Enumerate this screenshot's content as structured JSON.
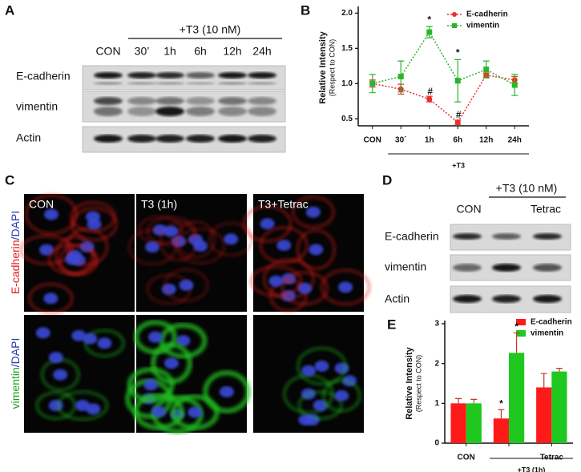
{
  "panel_a": {
    "label": "A",
    "header": "+T3 (10 nM)",
    "lanes": [
      "CON",
      "30’",
      "1h",
      "6h",
      "12h",
      "24h"
    ],
    "rows": [
      "E-cadherin",
      "vimentin",
      "Actin"
    ]
  },
  "panel_c": {
    "label": "C",
    "columns": [
      "CON",
      "T3 (1h)",
      "T3+Tetrac"
    ],
    "row_1": [
      "E-cadherin",
      "/DAPI"
    ],
    "row_2": [
      "vimentin",
      "/DAPI"
    ]
  },
  "panel_d": {
    "label": "D",
    "header": "+T3 (10 nM)",
    "lanes": [
      "CON",
      "Tetrac"
    ],
    "rows": [
      "E-cadherin",
      "vimentin",
      "Actin"
    ]
  },
  "chart_data": [
    {
      "type": "line",
      "label": "B",
      "ylabel": "Relative Intensity",
      "ylabel_sub": "(Respect to CON)",
      "categories": [
        "CON",
        "30´",
        "1h",
        "6h",
        "12h",
        "24h"
      ],
      "group_label": "+T3",
      "series": [
        {
          "name": "E-cadherin",
          "color": "#e8312a",
          "marker": "circle",
          "values": [
            1.0,
            0.92,
            0.78,
            0.45,
            1.12,
            1.05
          ],
          "errors": [
            0.05,
            0.07,
            0.04,
            0.03,
            0.03,
            0.05
          ]
        },
        {
          "name": "vimentin",
          "color": "#2ab52a",
          "marker": "square",
          "values": [
            1.0,
            1.1,
            1.73,
            1.04,
            1.2,
            0.98
          ],
          "errors": [
            0.13,
            0.22,
            0.08,
            0.3,
            0.12,
            0.15
          ]
        }
      ],
      "ylim": [
        0.4,
        2.05
      ],
      "yticks": [
        0.5,
        {
          "value": 1,
          "label": "1.0"
        },
        1.5,
        {
          "value": 2,
          "label": "2.0"
        }
      ],
      "legend": "top-right",
      "annotations": [
        {
          "text": "*",
          "series": "vimentin",
          "category": "1h"
        },
        {
          "text": "*",
          "series": "vimentin",
          "category": "6h"
        },
        {
          "text": "#",
          "series": "E-cadherin",
          "category": "1h"
        },
        {
          "text": "#",
          "series": "E-cadherin",
          "category": "6h"
        }
      ]
    },
    {
      "type": "bar",
      "label": "E",
      "ylabel": "Relative Intensity",
      "ylabel_sub": "(Respect to CON)",
      "categories": [
        "CON",
        null,
        "Tetrac"
      ],
      "group_label": "+T3 (1h)",
      "series": [
        {
          "name": "E-cadherin",
          "color": "#ff1a1a",
          "values": [
            1.0,
            0.62,
            1.4
          ],
          "errors": [
            0.12,
            0.22,
            0.35
          ]
        },
        {
          "name": "vimentin",
          "color": "#1ec81e",
          "values": [
            1.0,
            2.27,
            1.8
          ],
          "errors": [
            0.1,
            0.5,
            0.08
          ]
        }
      ],
      "ylim": [
        0,
        3
      ],
      "yticks": [
        0,
        1,
        2,
        3
      ],
      "legend": "top-right",
      "annotations": [
        {
          "text": "*",
          "series": "E-cadherin",
          "category_index_label": "+T3 (1h)"
        }
      ]
    }
  ]
}
